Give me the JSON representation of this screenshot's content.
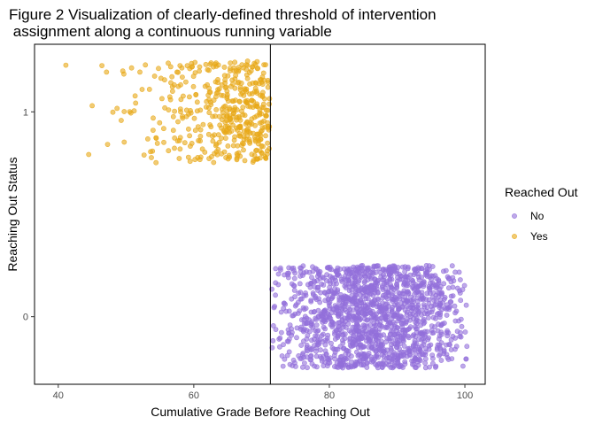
{
  "chart_data": {
    "type": "scatter",
    "title": "Figure 2 Visualization of clearly-defined threshold of intervention\n assignment along a continuous running variable",
    "xlabel": "Cumulative Grade Before Reaching Out",
    "ylabel": "Reaching Out Status",
    "xlim": [
      36.5,
      103
    ],
    "ylim": [
      -0.33,
      1.33
    ],
    "x_ticks": [
      40,
      60,
      80,
      100
    ],
    "y_ticks": [
      0,
      1
    ],
    "threshold_x": 71.3,
    "grid": false,
    "jitter_height": 0.25,
    "legend": {
      "title": "Reached Out",
      "placement": "right",
      "entries": [
        {
          "label": "No",
          "color": "#9370DB"
        },
        {
          "label": "Yes",
          "color": "#E8A817"
        }
      ]
    },
    "series": [
      {
        "name": "No",
        "color": "#9370DB",
        "y": 0,
        "x_range": [
          71.5,
          100.5
        ],
        "approx_points": 1500
      },
      {
        "name": "Yes",
        "color": "#E8A817",
        "y": 1,
        "x_range": [
          40,
          71.2
        ],
        "approx_points": 450
      }
    ]
  }
}
